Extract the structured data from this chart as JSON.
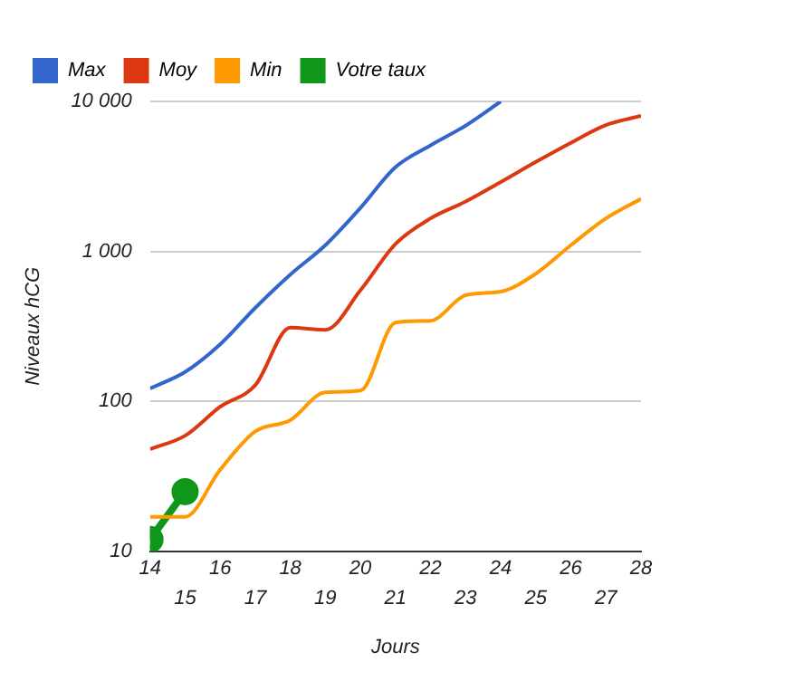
{
  "chart_data": {
    "type": "line",
    "xlabel": "Jours",
    "ylabel": "Niveaux hCG",
    "log": "y",
    "grid": "y",
    "legend": "top left",
    "marker": "none",
    "line_style": "solid",
    "x": [
      14,
      15,
      16,
      17,
      18,
      19,
      20,
      21,
      22,
      23,
      24,
      25,
      26,
      27,
      28
    ],
    "xlim": [
      14,
      28
    ],
    "xticks": [
      14,
      16,
      18,
      20,
      22,
      24,
      26,
      28
    ],
    "x2lim": [
      14,
      28
    ],
    "x2ticks": [
      15,
      17,
      19,
      21,
      23,
      25,
      27
    ],
    "ylim": [
      10,
      10000
    ],
    "yticks": [
      10,
      100,
      {
        "value": 1000,
        "label": "1 000"
      },
      {
        "value": 10000,
        "label": "10 000"
      }
    ],
    "series": [
      {
        "name": "Max",
        "color": "#3366cc",
        "values": [
          122,
          157,
          240,
          420,
          700,
          1100,
          1950,
          3650,
          5100,
          6900,
          10000,
          null,
          null,
          null,
          null
        ]
      },
      {
        "name": "Moy",
        "color": "#dc3912",
        "values": [
          48,
          59,
          92,
          128,
          310,
          300,
          550,
          1120,
          1660,
          2150,
          2900,
          3950,
          5300,
          6950,
          8000
        ]
      },
      {
        "name": "Min",
        "color": "#ff9900",
        "values": [
          17,
          17,
          35,
          63,
          75,
          115,
          118,
          335,
          345,
          510,
          540,
          710,
          1100,
          1660,
          2240
        ]
      },
      {
        "name": "Votre taux",
        "color": "#109618",
        "marker": "circle",
        "x": [
          14,
          15
        ],
        "values": [
          12,
          25
        ]
      }
    ]
  }
}
